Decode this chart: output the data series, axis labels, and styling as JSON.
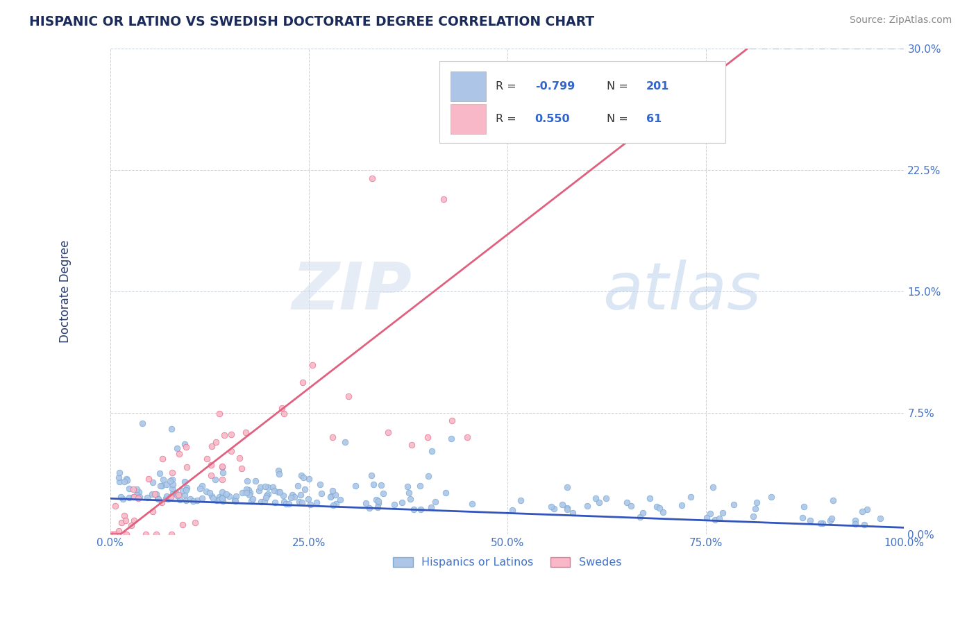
{
  "title": "HISPANIC OR LATINO VS SWEDISH DOCTORATE DEGREE CORRELATION CHART",
  "source": "Source: ZipAtlas.com",
  "ylabel": "Doctorate Degree",
  "xaxis_ticks": [
    "0.0%",
    "25.0%",
    "50.0%",
    "75.0%",
    "100.0%"
  ],
  "xaxis_vals": [
    0.0,
    0.25,
    0.5,
    0.75,
    1.0
  ],
  "yaxis_ticks": [
    "0.0%",
    "7.5%",
    "15.0%",
    "22.5%",
    "30.0%"
  ],
  "yaxis_vals": [
    0.0,
    0.075,
    0.15,
    0.225,
    0.3
  ],
  "ylim": [
    0.0,
    0.3
  ],
  "xlim": [
    0.0,
    1.0
  ],
  "blue_R": -0.799,
  "blue_N": 201,
  "pink_R": 0.55,
  "pink_N": 61,
  "blue_scatter_color": "#adc6e8",
  "blue_edge_color": "#7aaad4",
  "pink_scatter_color": "#f8b8c8",
  "pink_edge_color": "#e87090",
  "blue_line_color": "#3355bb",
  "pink_line_color": "#e06080",
  "gray_dash_color": "#b0b8c8",
  "grid_color": "#c8d0dc",
  "background_color": "#ffffff",
  "watermark_zip": "ZIP",
  "watermark_atlas": "atlas",
  "legend_label_blue": "Hispanics or Latinos",
  "legend_label_pink": "Swedes",
  "title_color": "#1a2a5a",
  "axis_tick_color": "#4472c4",
  "ylabel_color": "#2c3e6b",
  "source_color": "#888888",
  "legend_R_color": "#333333",
  "legend_N_color": "#2244aa",
  "legend_val_color": "#3366cc",
  "seed": 42,
  "blue_line_slope": -0.018,
  "blue_line_intercept": 0.022,
  "pink_line_slope": 0.38,
  "pink_line_intercept": -0.005
}
